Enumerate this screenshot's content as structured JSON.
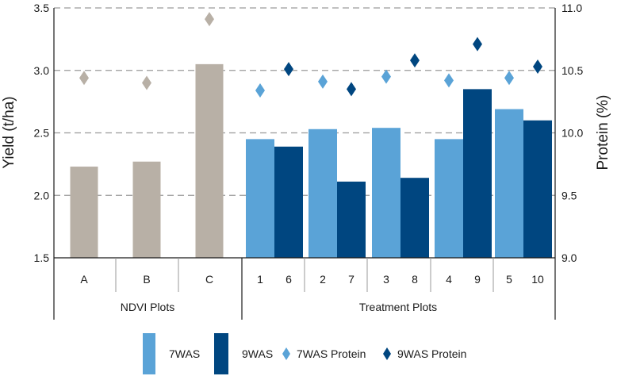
{
  "chart_data": {
    "type": "bar",
    "ylabel": "Yield (t/ha)",
    "y2label": "Protein (%)",
    "ylim": [
      1.5,
      3.5
    ],
    "y2lim": [
      9.0,
      11.0
    ],
    "yticks": [
      "1.5",
      "2.0",
      "2.5",
      "3.0",
      "3.5"
    ],
    "y2ticks": [
      "9.0",
      "9.5",
      "10.0",
      "10.5",
      "11.0"
    ],
    "grid": "horizontal dashed",
    "groups": [
      {
        "name": "NDVI Plots",
        "slots": [
          {
            "label": "A",
            "yield": 2.23,
            "protein": 10.44,
            "series": "NDVI"
          },
          {
            "label": "B",
            "yield": 2.27,
            "protein": 10.4,
            "series": "NDVI"
          },
          {
            "label": "C",
            "yield": 3.05,
            "protein": 10.91,
            "series": "NDVI"
          }
        ]
      },
      {
        "name": "Treatment Plots",
        "slots": [
          {
            "label": "1",
            "yield": 2.45,
            "protein": 10.34,
            "series": "7WAS"
          },
          {
            "label": "6",
            "yield": 2.39,
            "protein": 10.51,
            "series": "9WAS"
          },
          {
            "label": "2",
            "yield": 2.53,
            "protein": 10.41,
            "series": "7WAS"
          },
          {
            "label": "7",
            "yield": 2.11,
            "protein": 10.35,
            "series": "9WAS"
          },
          {
            "label": "3",
            "yield": 2.54,
            "protein": 10.45,
            "series": "7WAS"
          },
          {
            "label": "8",
            "yield": 2.14,
            "protein": 10.58,
            "series": "9WAS"
          },
          {
            "label": "4",
            "yield": 2.45,
            "protein": 10.42,
            "series": "7WAS"
          },
          {
            "label": "9",
            "yield": 2.85,
            "protein": 10.71,
            "series": "9WAS"
          },
          {
            "label": "5",
            "yield": 2.69,
            "protein": 10.44,
            "series": "7WAS"
          },
          {
            "label": "10",
            "yield": 2.6,
            "protein": 10.53,
            "series": "9WAS"
          }
        ]
      }
    ],
    "legend": {
      "position": "bottom",
      "items": [
        {
          "label": "7WAS",
          "kind": "bar",
          "series": "7WAS"
        },
        {
          "label": "9WAS",
          "kind": "bar",
          "series": "9WAS"
        },
        {
          "label": "7WAS Protein",
          "kind": "diamond",
          "series": "7WAS"
        },
        {
          "label": "9WAS Protein",
          "kind": "diamond",
          "series": "9WAS"
        }
      ]
    },
    "colors": {
      "NDVI": "#b8b0a6",
      "7WAS": "#5aa3d7",
      "9WAS": "#004680",
      "grid": "#9a9a9a",
      "axis": "#1a1a1a"
    }
  }
}
